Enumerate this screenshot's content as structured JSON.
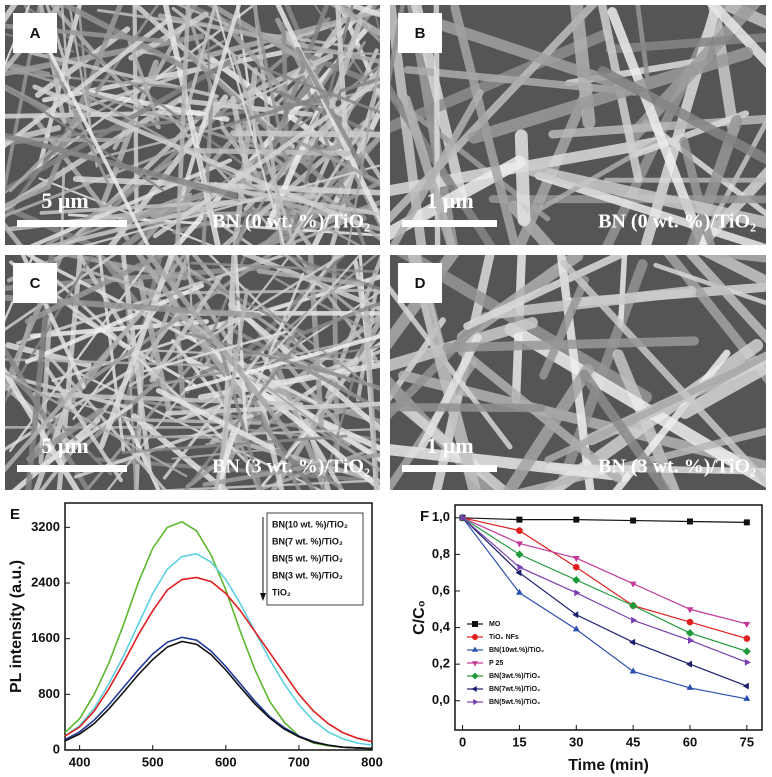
{
  "images": [
    {
      "label": "A",
      "scale_bar": "5 μm",
      "caption": "BN (0 wt. %)/TiO₂"
    },
    {
      "label": "B",
      "scale_bar": "1 μm",
      "caption": "BN (0 wt. %)/TiO₂"
    },
    {
      "label": "C",
      "scale_bar": "5 μm",
      "caption": "BN (3 wt. %)/TiO₂"
    },
    {
      "label": "D",
      "scale_bar": "1 μm",
      "caption": "BN (3 wt. %)/TiO₂"
    }
  ],
  "chart_data": [
    {
      "type": "line",
      "panel": "E",
      "xlabel": "Wavelength (nm)",
      "ylabel": "PL intensity (a.u.)",
      "x": [
        380,
        400,
        420,
        440,
        460,
        480,
        500,
        520,
        540,
        560,
        580,
        600,
        620,
        640,
        660,
        680,
        700,
        720,
        740,
        760,
        780,
        800
      ],
      "series": [
        {
          "color": "#5cb82c",
          "values": [
            250,
            450,
            800,
            1250,
            1800,
            2400,
            2900,
            3200,
            3280,
            3150,
            2800,
            2300,
            1700,
            1150,
            700,
            400,
            200,
            100,
            60,
            40,
            30,
            20
          ]
        },
        {
          "color": "#5ad0e0",
          "values": [
            200,
            350,
            600,
            950,
            1350,
            1800,
            2250,
            2600,
            2780,
            2820,
            2700,
            2450,
            2100,
            1700,
            1300,
            950,
            650,
            420,
            260,
            160,
            100,
            70
          ]
        },
        {
          "color": "#e02020",
          "values": [
            200,
            330,
            560,
            880,
            1250,
            1650,
            2000,
            2300,
            2450,
            2480,
            2420,
            2250,
            2000,
            1700,
            1400,
            1100,
            800,
            560,
            380,
            250,
            170,
            120
          ]
        },
        {
          "color": "#1f3a9a",
          "values": [
            150,
            260,
            430,
            650,
            900,
            1150,
            1380,
            1550,
            1620,
            1580,
            1420,
            1200,
            950,
            700,
            480,
            320,
            200,
            120,
            70,
            40,
            30,
            20
          ]
        },
        {
          "color": "#111111",
          "values": [
            130,
            230,
            380,
            590,
            830,
            1080,
            1300,
            1480,
            1560,
            1520,
            1370,
            1150,
            900,
            660,
            460,
            300,
            190,
            110,
            70,
            40,
            30,
            20
          ]
        }
      ],
      "legend_texts": [
        "BN(10 wt. %)/TiO₂",
        "BN(7 wt. %)/TiO₂",
        "BN(5 wt. %)/TiO₂",
        "BN(3 wt. %)/TiO₂",
        "TiO₂"
      ],
      "legend": "upper right",
      "xlim": [
        380,
        800
      ],
      "xticks": [
        400,
        500,
        600,
        700,
        800
      ],
      "ylim": [
        0,
        3550
      ],
      "yticks": [
        0,
        800,
        1600,
        2400,
        3200
      ]
    },
    {
      "type": "line",
      "panel": "F",
      "xlabel": "Time (min)",
      "ylabel": "C/C₀",
      "x": [
        0,
        15,
        30,
        45,
        60,
        75
      ],
      "series": [
        {
          "name": "MO",
          "color": "#111111",
          "marker": "square",
          "values": [
            1,
            0.99,
            0.99,
            0.985,
            0.98,
            0.975
          ]
        },
        {
          "name": "TiO₂ NFs",
          "color": "#e02020",
          "marker": "circle",
          "values": [
            1,
            0.93,
            0.73,
            0.52,
            0.43,
            0.34
          ]
        },
        {
          "name": "BN(10wt.%)/TiO₂",
          "color": "#2a4fb0",
          "marker": "triangle-up",
          "values": [
            1,
            0.59,
            0.39,
            0.16,
            0.07,
            0.01
          ]
        },
        {
          "name": "P 25",
          "color": "#c2399a",
          "marker": "triangle-down",
          "values": [
            1,
            0.86,
            0.78,
            0.64,
            0.5,
            0.42
          ]
        },
        {
          "name": "BN(3wt.%)/TiO₂",
          "color": "#1f9a3a",
          "marker": "diamond",
          "values": [
            1,
            0.8,
            0.66,
            0.52,
            0.37,
            0.27
          ]
        },
        {
          "name": "BN(7wt.%)/TiO₂",
          "color": "#1c1f6e",
          "marker": "triangle-left",
          "values": [
            1,
            0.7,
            0.47,
            0.32,
            0.2,
            0.08
          ]
        },
        {
          "name": "BN(5wt.%)/TiO₂",
          "color": "#7a3fb0",
          "marker": "triangle-right",
          "values": [
            1,
            0.73,
            0.59,
            0.44,
            0.33,
            0.21
          ]
        }
      ],
      "legend": "lower left",
      "xlim": [
        -2,
        79
      ],
      "xticks": [
        0,
        15,
        30,
        45,
        60,
        75
      ],
      "ylim": [
        -0.16,
        1.07
      ],
      "yticks": [
        {
          "value": 0,
          "label": "0,0"
        },
        {
          "value": 0.2,
          "label": "0,2"
        },
        {
          "value": 0.4,
          "label": "0,4"
        },
        {
          "value": 0.6,
          "label": "0,6"
        },
        {
          "value": 0.8,
          "label": "0,8"
        },
        {
          "value": 1,
          "label": "1,0"
        }
      ]
    }
  ]
}
